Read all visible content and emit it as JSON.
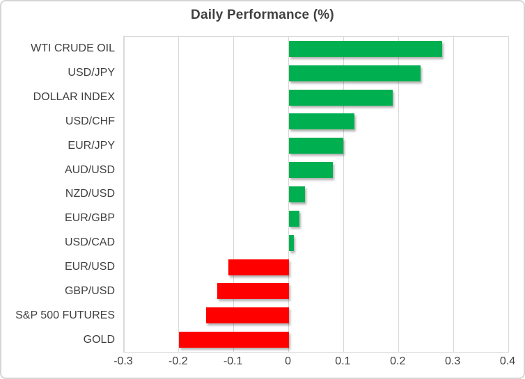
{
  "chart": {
    "title": "Daily Performance (%)"
  },
  "chart_data": {
    "type": "bar",
    "orientation": "horizontal",
    "title": "Daily Performance (%)",
    "categories": [
      "WTI CRUDE OIL",
      "USD/JPY",
      "DOLLAR INDEX",
      "USD/CHF",
      "EUR/JPY",
      "AUD/USD",
      "NZD/USD",
      "EUR/GBP",
      "USD/CAD",
      "EUR/USD",
      "GBP/USD",
      "S&P 500 FUTURES",
      "GOLD"
    ],
    "values": [
      0.28,
      0.24,
      0.19,
      0.12,
      0.1,
      0.08,
      0.03,
      0.02,
      0.01,
      -0.11,
      -0.13,
      -0.15,
      -0.2
    ],
    "xlabel": "",
    "ylabel": "",
    "xlim": [
      -0.3,
      0.4
    ],
    "xticks": [
      -0.3,
      -0.2,
      -0.1,
      0,
      0.1,
      0.2,
      0.3,
      0.4
    ],
    "xtick_labels": [
      "-0.3",
      "-0.2",
      "-0.1",
      "0",
      "0.1",
      "0.2",
      "0.3",
      "0.4"
    ],
    "grid": true,
    "legend": false,
    "colors": {
      "positive": "#00b050",
      "negative": "#ff0000",
      "gridline": "#d9d9d9",
      "text": "#404040",
      "border": "#d5d5d5"
    }
  }
}
